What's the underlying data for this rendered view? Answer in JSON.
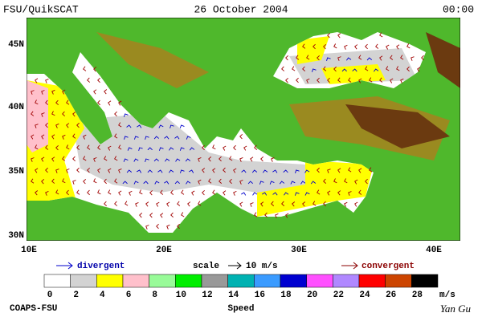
{
  "header": {
    "source": "FSU/QuikSCAT",
    "date": "26 October 2004",
    "time": "00:00"
  },
  "map": {
    "lat_labels": [
      "45N",
      "40N",
      "35N",
      "30N"
    ],
    "lon_labels": [
      "10E",
      "20E",
      "30E",
      "40E"
    ]
  },
  "legend": {
    "divergent": "divergent",
    "scale": "scale",
    "scale_value": "10 m/s",
    "convergent": "convergent"
  },
  "colorbar": {
    "ticks": [
      "0",
      "2",
      "4",
      "6",
      "8",
      "10",
      "12",
      "14",
      "16",
      "18",
      "20",
      "22",
      "24",
      "26",
      "28"
    ],
    "unit": "m/s",
    "label": "Speed",
    "colors": [
      "#ffffff",
      "#d3d3d3",
      "#ffff00",
      "#ffc0cb",
      "#98fb98",
      "#00ee00",
      "#999999",
      "#00b2b2",
      "#3a9bff",
      "#0000d0",
      "#ff50ff",
      "#b088ff",
      "#ff0000",
      "#cc4400",
      "#000000"
    ]
  },
  "footer": {
    "credit": "COAPS-FSU",
    "author": "Yan Gu"
  }
}
